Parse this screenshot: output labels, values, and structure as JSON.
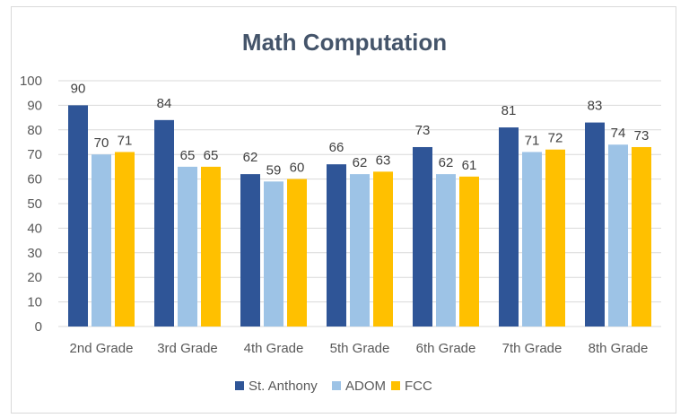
{
  "chart_data": {
    "type": "bar",
    "title": "Math Computation",
    "xlabel": "",
    "ylabel": "",
    "ylim": [
      0,
      100
    ],
    "yticks": [
      0,
      10,
      20,
      30,
      40,
      50,
      60,
      70,
      80,
      90,
      100
    ],
    "grid": true,
    "legend_position": "bottom",
    "categories": [
      "2nd Grade",
      "3rd Grade",
      "4th Grade",
      "5th Grade",
      "6th Grade",
      "7th Grade",
      "8th Grade"
    ],
    "series": [
      {
        "name": "St. Anthony",
        "color": "#2f5597",
        "values": [
          90,
          84,
          62,
          66,
          73,
          81,
          83
        ]
      },
      {
        "name": "ADOM",
        "color": "#9dc3e6",
        "values": [
          70,
          65,
          59,
          62,
          62,
          71,
          74
        ]
      },
      {
        "name": "FCC",
        "color": "#ffc000",
        "values": [
          71,
          65,
          60,
          63,
          61,
          72,
          73
        ]
      }
    ]
  }
}
